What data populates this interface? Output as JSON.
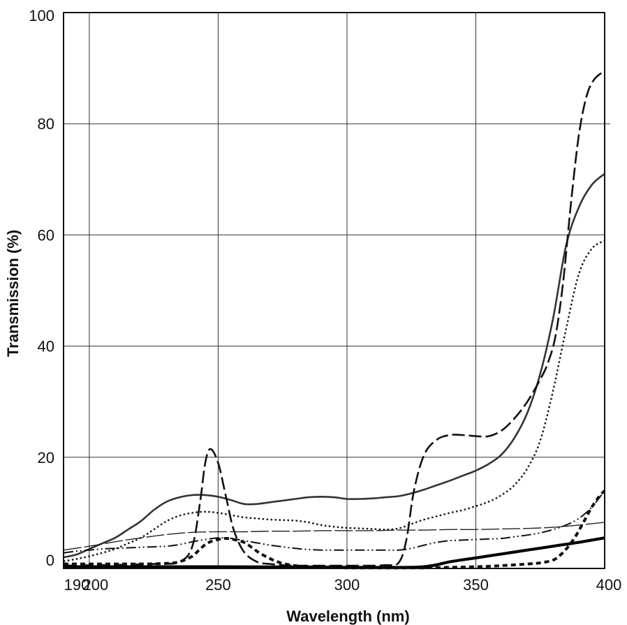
{
  "chart_data": {
    "type": "line",
    "title": "",
    "xlabel": "Wavelength (nm)",
    "ylabel": "Transmission (%)",
    "xlim": [
      190,
      400
    ],
    "ylim": [
      0,
      100
    ],
    "grid": true,
    "x_ticks": [
      190,
      200,
      250,
      300,
      350,
      400
    ],
    "x_tick_labels": [
      "190",
      "200",
      "250",
      "300",
      "350",
      "400"
    ],
    "x_grid": [
      200,
      250,
      300,
      350,
      400
    ],
    "y_ticks": [
      0,
      20,
      40,
      60,
      80,
      100
    ],
    "y_tick_labels": [
      "0",
      "20",
      "40",
      "60",
      "80",
      "100"
    ],
    "series": [
      {
        "style": "solid-thin",
        "x": [
          190,
          195,
          200,
          205,
          210,
          215,
          220,
          225,
          230,
          235,
          240,
          245,
          250,
          255,
          260,
          265,
          270,
          275,
          280,
          285,
          290,
          295,
          300,
          305,
          310,
          315,
          320,
          325,
          330,
          335,
          340,
          345,
          350,
          355,
          360,
          365,
          370,
          375,
          380,
          385,
          390,
          395,
          400
        ],
        "y": [
          2.0,
          2.5,
          3.5,
          4.5,
          5.5,
          7.0,
          8.5,
          10.5,
          12.0,
          12.8,
          13.2,
          13.2,
          12.9,
          12.3,
          11.6,
          11.6,
          11.9,
          12.2,
          12.5,
          12.8,
          12.9,
          12.8,
          12.5,
          12.5,
          12.6,
          12.8,
          13.0,
          13.5,
          14.2,
          15.0,
          15.8,
          16.7,
          17.6,
          18.8,
          20.5,
          23.5,
          28.0,
          35.0,
          45.0,
          58.0,
          65.0,
          69.0,
          71.0
        ]
      },
      {
        "style": "long-dash",
        "x": [
          190,
          225,
          235,
          240,
          243,
          245,
          247,
          250,
          253,
          256,
          260,
          265,
          270,
          275,
          280,
          290,
          300,
          310,
          315,
          320,
          323,
          326,
          330,
          335,
          340,
          345,
          350,
          355,
          360,
          365,
          370,
          375,
          378,
          381,
          384,
          387,
          390,
          393,
          396,
          400
        ],
        "y": [
          0.5,
          0.8,
          1.2,
          4.0,
          12.0,
          19.0,
          21.5,
          19.0,
          13.0,
          7.0,
          3.0,
          1.2,
          0.8,
          0.6,
          0.5,
          0.5,
          0.5,
          0.5,
          0.6,
          1.0,
          5.0,
          14.0,
          20.5,
          23.2,
          24.0,
          24.0,
          23.8,
          23.8,
          24.8,
          27.0,
          30.0,
          34.0,
          37.0,
          42.0,
          52.0,
          66.0,
          78.0,
          85.0,
          88.0,
          89.5
        ]
      },
      {
        "style": "dotted",
        "x": [
          190,
          195,
          200,
          205,
          210,
          215,
          220,
          225,
          230,
          235,
          240,
          245,
          250,
          255,
          260,
          265,
          270,
          275,
          280,
          285,
          290,
          295,
          300,
          305,
          310,
          315,
          320,
          325,
          330,
          335,
          340,
          345,
          350,
          355,
          360,
          365,
          370,
          375,
          380,
          385,
          390,
          395,
          400
        ],
        "y": [
          1.3,
          1.7,
          2.2,
          2.8,
          3.5,
          4.5,
          5.5,
          7.0,
          8.5,
          9.5,
          10.0,
          10.2,
          10.0,
          9.6,
          9.2,
          9.0,
          8.8,
          8.7,
          8.6,
          8.3,
          7.8,
          7.5,
          7.3,
          7.2,
          7.1,
          7.0,
          7.2,
          8.0,
          8.8,
          9.4,
          10.0,
          10.5,
          11.2,
          12.0,
          13.2,
          15.0,
          18.0,
          23.0,
          32.0,
          43.0,
          53.0,
          57.5,
          59.0
        ]
      },
      {
        "style": "long-dash-thin",
        "x": [
          190,
          200,
          210,
          220,
          230,
          240,
          250,
          260,
          270,
          280,
          290,
          300,
          310,
          320,
          330,
          340,
          350,
          360,
          370,
          380,
          390,
          400
        ],
        "y": [
          3.3,
          4.0,
          4.8,
          5.5,
          6.1,
          6.5,
          6.6,
          6.6,
          6.7,
          6.7,
          6.8,
          6.8,
          6.8,
          6.9,
          6.9,
          7.0,
          7.0,
          7.1,
          7.2,
          7.4,
          7.8,
          8.3
        ]
      },
      {
        "style": "dash-dot-dot",
        "x": [
          190,
          195,
          200,
          205,
          210,
          215,
          220,
          225,
          230,
          235,
          240,
          245,
          250,
          255,
          260,
          265,
          270,
          275,
          280,
          285,
          290,
          295,
          300,
          305,
          310,
          315,
          320,
          325,
          330,
          335,
          340,
          345,
          350,
          355,
          360,
          365,
          370,
          375,
          380,
          385,
          390,
          395,
          400
        ],
        "y": [
          2.8,
          3.1,
          3.3,
          3.5,
          3.6,
          3.7,
          3.8,
          3.9,
          4.0,
          4.3,
          4.8,
          5.2,
          5.5,
          5.4,
          5.0,
          4.6,
          4.2,
          3.9,
          3.6,
          3.4,
          3.3,
          3.3,
          3.3,
          3.3,
          3.3,
          3.3,
          3.3,
          3.6,
          4.2,
          4.7,
          5.0,
          5.1,
          5.2,
          5.3,
          5.4,
          5.7,
          6.0,
          6.4,
          7.0,
          7.8,
          9.0,
          11.0,
          14.0
        ]
      },
      {
        "style": "short-dash-heavy",
        "x": [
          190,
          200,
          210,
          220,
          230,
          235,
          240,
          243,
          246,
          250,
          253,
          256,
          260,
          263,
          266,
          270,
          273,
          276,
          280,
          285,
          290,
          300,
          310,
          320,
          330,
          340,
          350,
          360,
          370,
          375,
          380,
          383,
          386,
          389,
          392,
          395,
          398,
          400
        ],
        "y": [
          0.8,
          0.8,
          0.8,
          0.8,
          0.9,
          1.2,
          2.2,
          3.5,
          4.6,
          5.2,
          5.4,
          5.2,
          4.7,
          3.8,
          2.8,
          1.8,
          1.2,
          0.8,
          0.5,
          0.3,
          0.2,
          0.1,
          0.1,
          0.1,
          0.1,
          0.2,
          0.3,
          0.5,
          0.8,
          1.0,
          1.5,
          2.5,
          4.0,
          6.0,
          8.5,
          11.0,
          13.0,
          14.0
        ]
      },
      {
        "style": "solid-heavy",
        "x": [
          190,
          200,
          250,
          300,
          325,
          333,
          340,
          350,
          360,
          370,
          380,
          390,
          400
        ],
        "y": [
          0.3,
          0.3,
          0.3,
          0.2,
          0.2,
          0.5,
          1.2,
          1.9,
          2.6,
          3.3,
          4.0,
          4.7,
          5.5
        ]
      }
    ]
  }
}
